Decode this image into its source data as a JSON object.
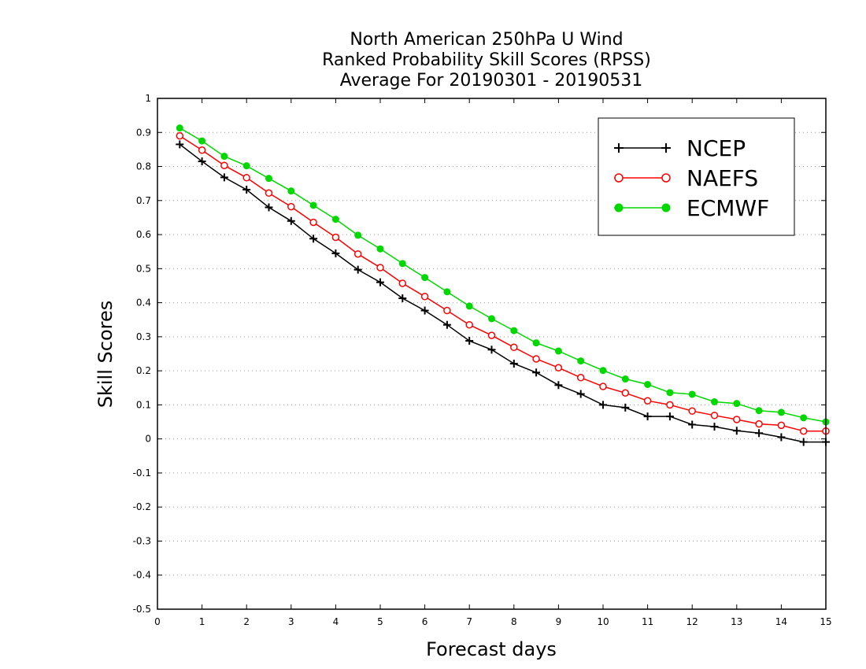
{
  "chart_data": {
    "type": "line",
    "title": [
      "North American 250hPa U Wind",
      "Ranked Probability Skill Scores (RPSS)",
      "Average For 20190301 - 20190531"
    ],
    "xlabel": "Forecast days",
    "ylabel": "Skill Scores",
    "xlim": [
      0,
      15
    ],
    "ylim": [
      -0.5,
      1
    ],
    "xticks": [
      "0",
      "1",
      "2",
      "3",
      "4",
      "5",
      "6",
      "7",
      "8",
      "9",
      "10",
      "11",
      "12",
      "13",
      "14",
      "15"
    ],
    "yticks": [
      "-0.5",
      "-0.4",
      "-0.3",
      "-0.2",
      "-0.1",
      "0",
      "0.1",
      "0.2",
      "0.3",
      "0.4",
      "0.5",
      "0.6",
      "0.7",
      "0.8",
      "0.9",
      "1"
    ],
    "grid": "horizontal dotted",
    "legend_position": "top-right",
    "x": [
      0.5,
      1,
      1.5,
      2,
      2.5,
      3,
      3.5,
      4,
      4.5,
      5,
      5.5,
      6,
      6.5,
      7,
      7.5,
      8,
      8.5,
      9,
      9.5,
      10,
      10.5,
      11,
      11.5,
      12,
      12.5,
      13,
      13.5,
      14,
      14.5,
      15
    ],
    "series": [
      {
        "name": "NCEP",
        "color": "#000000",
        "marker": "plus",
        "values": [
          0.865,
          0.815,
          0.768,
          0.732,
          0.68,
          0.64,
          0.588,
          0.545,
          0.497,
          0.46,
          0.413,
          0.377,
          0.335,
          0.288,
          0.262,
          0.221,
          0.195,
          0.158,
          0.132,
          0.1,
          0.092,
          0.066,
          0.066,
          0.042,
          0.036,
          0.024,
          0.017,
          0.005,
          -0.009,
          -0.009
        ]
      },
      {
        "name": "NAEFS",
        "color": "#ff0000",
        "marker": "open-circle",
        "values": [
          0.89,
          0.848,
          0.803,
          0.767,
          0.722,
          0.682,
          0.636,
          0.592,
          0.543,
          0.503,
          0.457,
          0.418,
          0.377,
          0.335,
          0.304,
          0.269,
          0.235,
          0.209,
          0.18,
          0.154,
          0.135,
          0.112,
          0.1,
          0.082,
          0.069,
          0.057,
          0.044,
          0.04,
          0.023,
          0.023
        ]
      },
      {
        "name": "ECMWF",
        "color": "#00d800",
        "marker": "filled-circle",
        "values": [
          0.913,
          0.875,
          0.83,
          0.802,
          0.765,
          0.728,
          0.686,
          0.645,
          0.598,
          0.558,
          0.515,
          0.474,
          0.432,
          0.39,
          0.353,
          0.318,
          0.282,
          0.258,
          0.229,
          0.201,
          0.176,
          0.16,
          0.136,
          0.131,
          0.109,
          0.104,
          0.083,
          0.078,
          0.062,
          0.05
        ]
      }
    ]
  }
}
